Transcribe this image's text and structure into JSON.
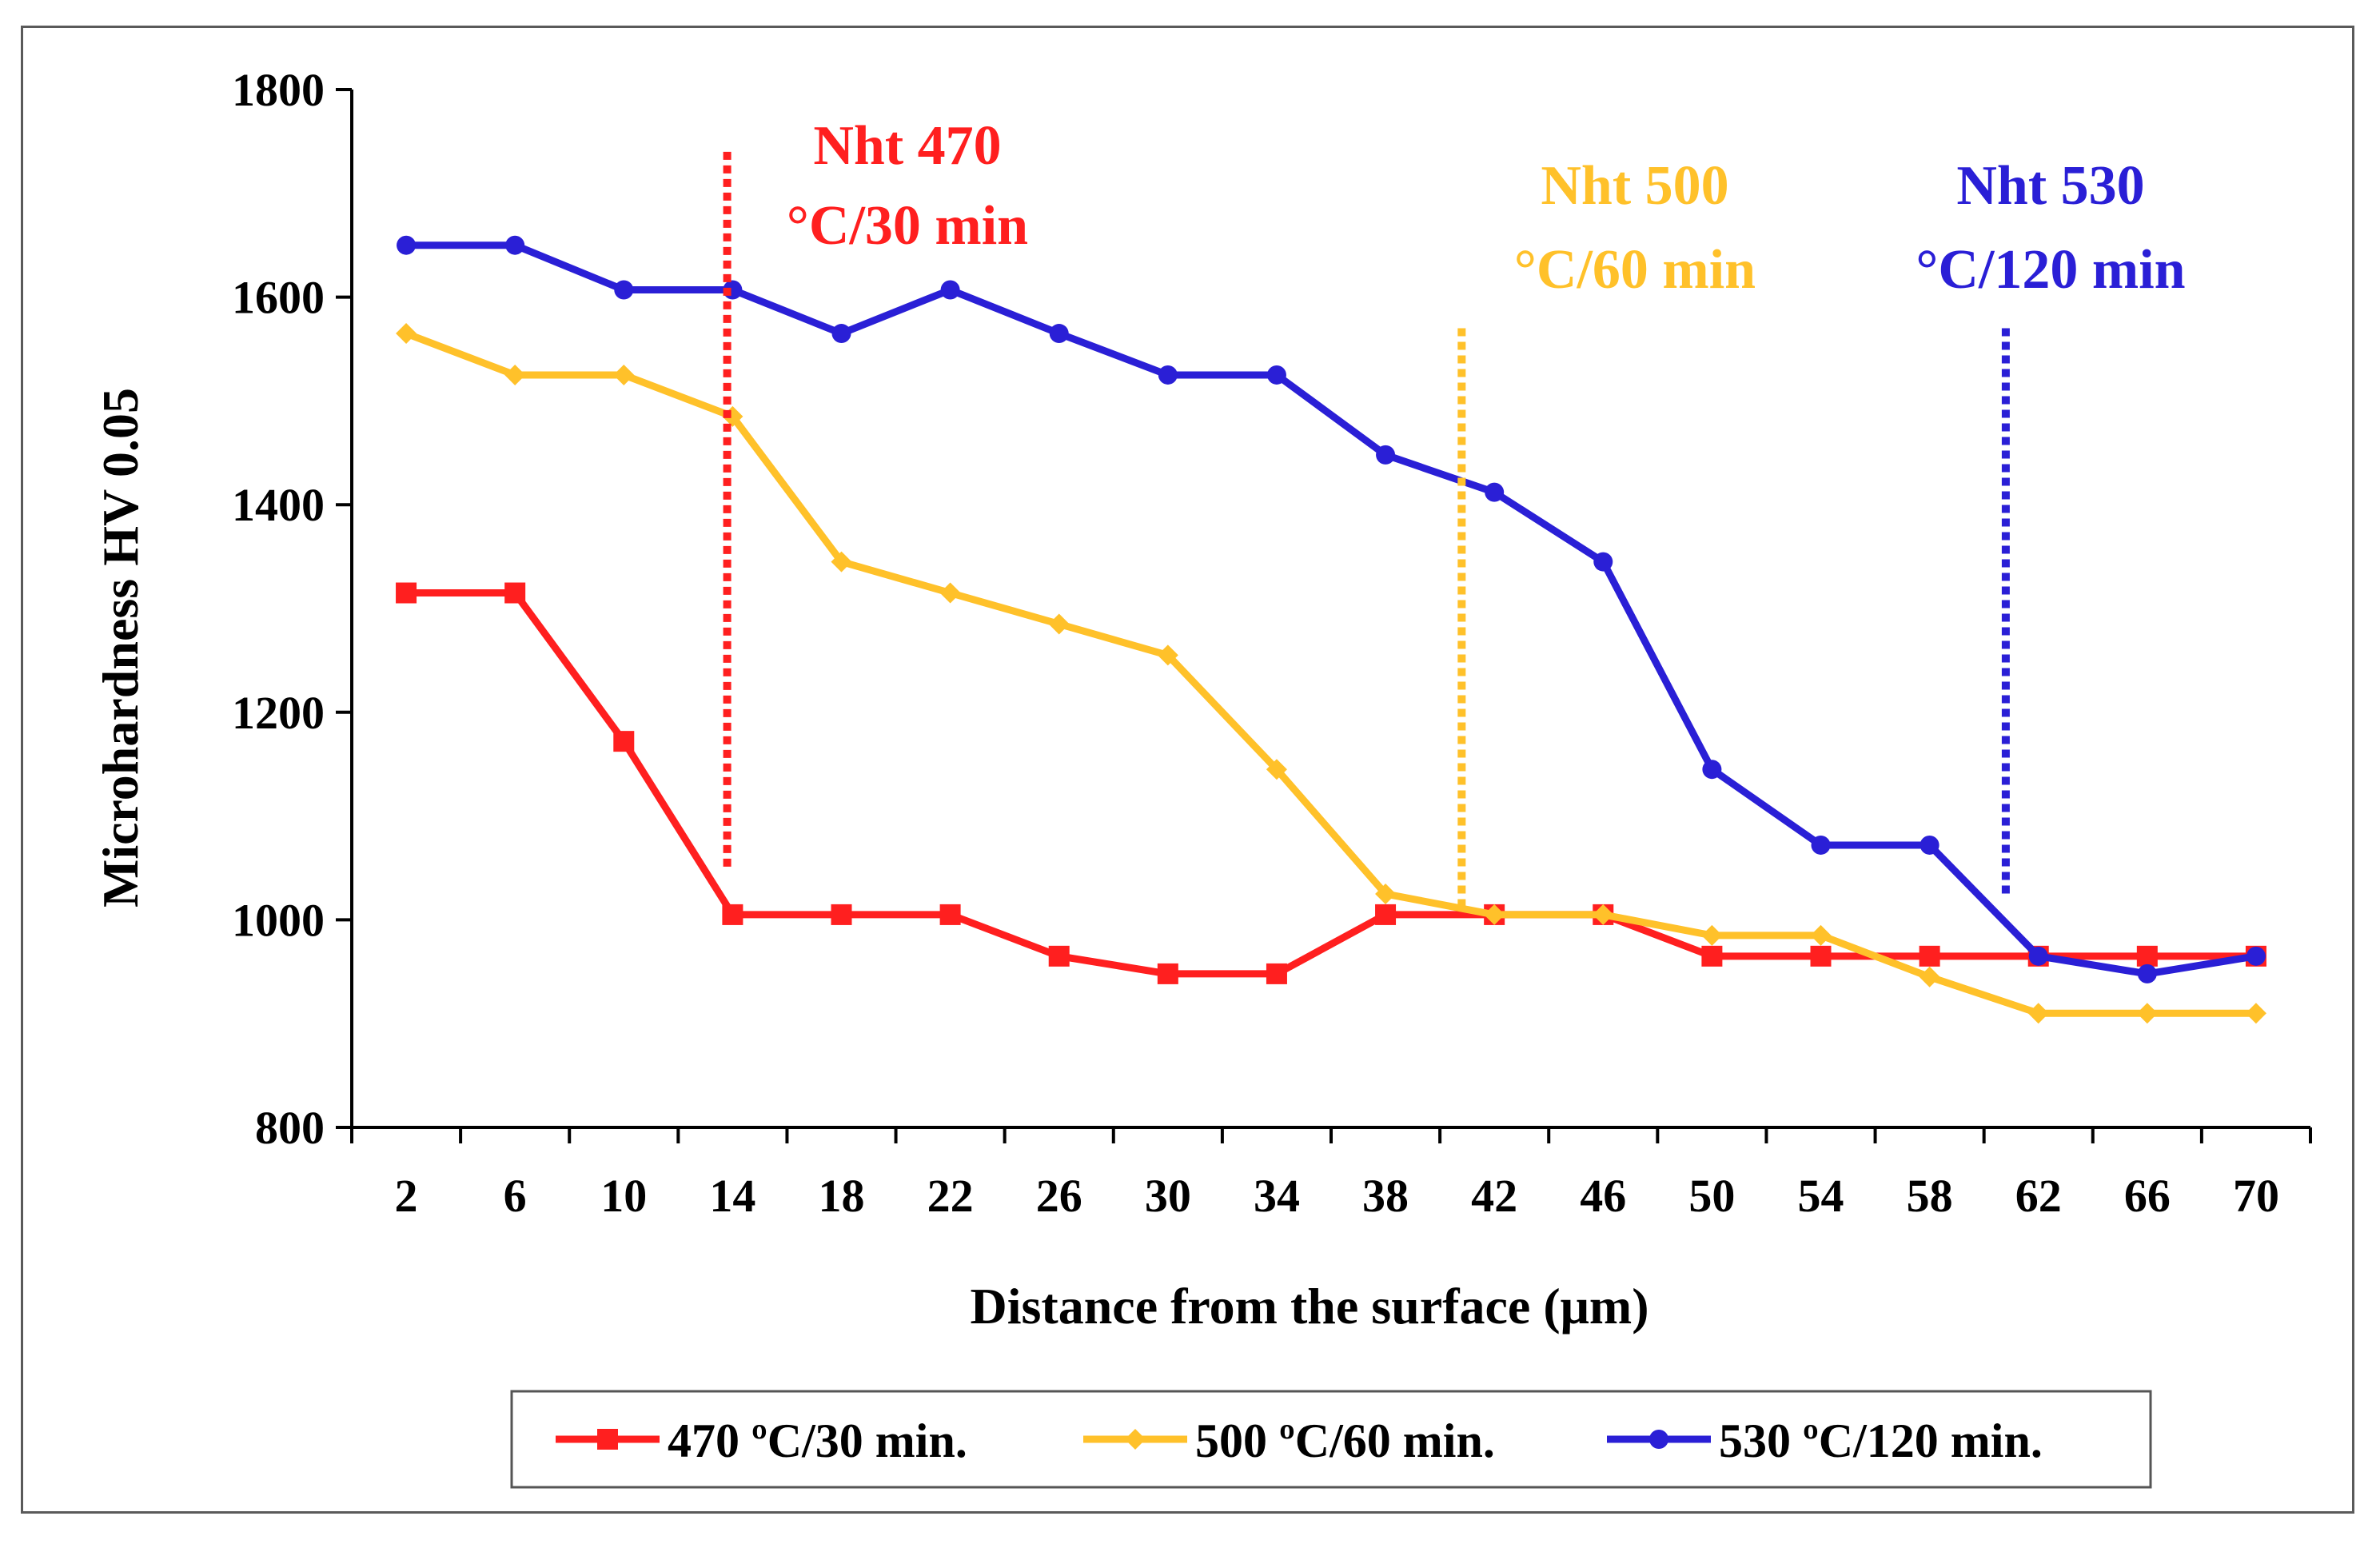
{
  "chart_data": {
    "type": "line",
    "title": "",
    "xlabel": "Distance from the surface (μm)",
    "ylabel": "Microhardness  HV 0.05",
    "ylim": [
      800,
      1800
    ],
    "yticks": [
      800,
      1000,
      1200,
      1400,
      1600,
      1800
    ],
    "categories": [
      "2",
      "6",
      "10",
      "14",
      "18",
      "22",
      "26",
      "30",
      "34",
      "38",
      "42",
      "46",
      "50",
      "54",
      "58",
      "62",
      "66",
      "70"
    ],
    "grid": false,
    "legend_position": "bottom",
    "series": [
      {
        "name": "470 ºC/30 min.",
        "color": "#ff1f1f",
        "marker": "square",
        "values": [
          1315,
          1315,
          1172,
          1005,
          1005,
          1005,
          965,
          948,
          948,
          1005,
          1005,
          1005,
          965,
          965,
          965,
          965,
          965,
          965
        ]
      },
      {
        "name": "500 ºC/60 min.",
        "color": "#ffc12a",
        "marker": "diamond",
        "values": [
          1565,
          1525,
          1525,
          1485,
          1345,
          1315,
          1285,
          1255,
          1145,
          1025,
          1005,
          1005,
          985,
          985,
          945,
          910,
          910,
          910
        ]
      },
      {
        "name": "530 ºC/120 min.",
        "color": "#2a1fd6",
        "marker": "circle",
        "values": [
          1650,
          1650,
          1607,
          1607,
          1565,
          1607,
          1565,
          1525,
          1525,
          1448,
          1412,
          1345,
          1145,
          1072,
          1072,
          965,
          948,
          965
        ]
      }
    ],
    "markers": [
      {
        "name": "nht-470",
        "x": 13.8,
        "y_top": 1740,
        "y_bottom": 1050,
        "line1": "Nht 470",
        "line2": "°C/30 min",
        "color": "#ff1f1f"
      },
      {
        "name": "nht-500",
        "x": 40.8,
        "y_top": 1570,
        "y_bottom": 1010,
        "line1": "Nht 500",
        "line2": "°C/60 min",
        "color": "#ffc12a"
      },
      {
        "name": "nht-530",
        "x": 60.8,
        "y_top": 1570,
        "y_bottom": 1020,
        "line1": "Nht 530",
        "line2": "°C/120 min",
        "color": "#2a1fd6"
      }
    ]
  }
}
